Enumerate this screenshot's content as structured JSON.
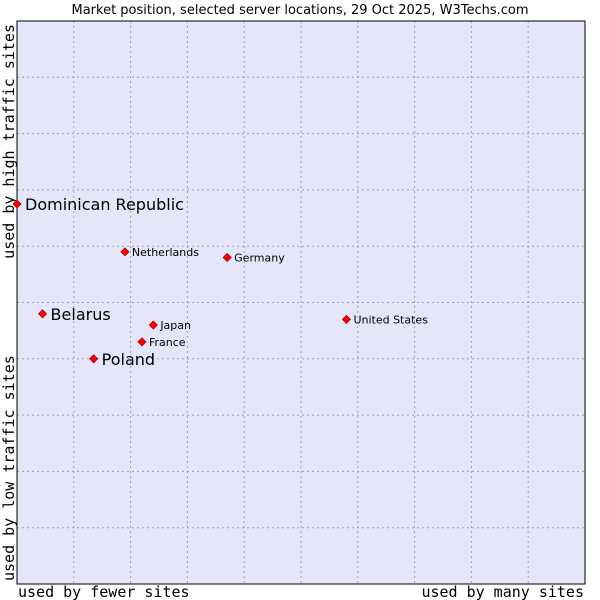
{
  "chart_data": {
    "type": "scatter",
    "title": "Market position, selected server locations, 29 Oct 2025, W3Techs.com",
    "x_axis": {
      "low_label": "used by fewer sites",
      "high_label": "used by many sites"
    },
    "y_axis": {
      "low_label": "used by low traffic sites",
      "high_label": "used by high traffic sites"
    },
    "xlim": [
      0,
      100
    ],
    "ylim": [
      0,
      100
    ],
    "grid": true,
    "colors": {
      "plot_background": "#e6e6fa",
      "grid": "#a0a0b4",
      "marker": "#ff0000",
      "marker_edge": "#aa0000"
    },
    "points": [
      {
        "label": "Dominican Republic",
        "x": 0,
        "y": 67.5,
        "emphasis": true
      },
      {
        "label": "Netherlands",
        "x": 19,
        "y": 59,
        "emphasis": false
      },
      {
        "label": "Germany",
        "x": 37,
        "y": 58,
        "emphasis": false
      },
      {
        "label": "Belarus",
        "x": 4.5,
        "y": 48,
        "emphasis": true
      },
      {
        "label": "United States",
        "x": 58,
        "y": 47,
        "emphasis": false
      },
      {
        "label": "Japan",
        "x": 24,
        "y": 46,
        "emphasis": false
      },
      {
        "label": "France",
        "x": 22,
        "y": 43,
        "emphasis": false
      },
      {
        "label": "Poland",
        "x": 13.5,
        "y": 40,
        "emphasis": true
      }
    ]
  }
}
